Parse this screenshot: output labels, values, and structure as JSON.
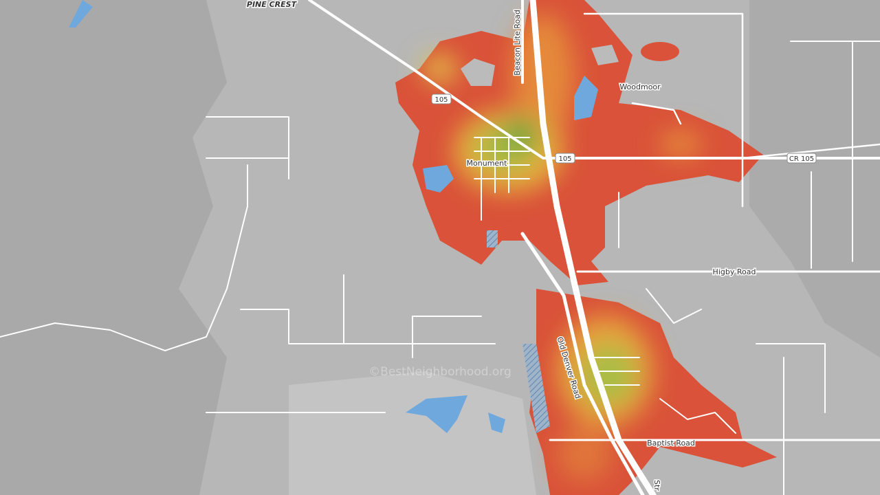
{
  "map": {
    "place_labels": [
      "PINE CREST",
      "Woodmoor",
      "Monument"
    ],
    "road_labels": [
      "Beacon Lite Road",
      "Old Denver Road",
      "Higby Road",
      "Baptist Road",
      "Str"
    ],
    "shields": [
      "105",
      "105",
      "CR 105"
    ],
    "watermark": "©BestNeighborhood.org"
  }
}
